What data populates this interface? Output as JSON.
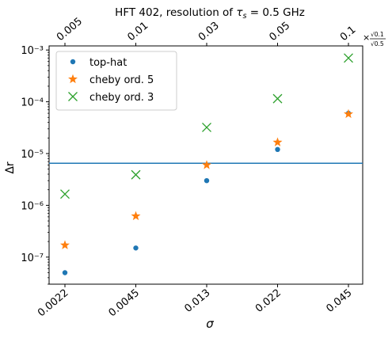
{
  "chart_data": {
    "type": "scatter",
    "title": "HFT 402, resolution of τ_s = 0.5 GHz",
    "title_parts": {
      "prefix": "HFT 402, resolution of ",
      "tau": "τ",
      "sub": "s",
      "suffix": " = 0.5 GHz"
    },
    "xlabel": "σ",
    "ylabel": "Δr",
    "y_scale": "log",
    "ylim": [
      3e-08,
      0.0012
    ],
    "categories": [
      "0.0022",
      "0.0045",
      "0.013",
      "0.022",
      "0.045"
    ],
    "top_categories": [
      "0.005",
      "0.01",
      "0.03",
      "0.05",
      "0.1"
    ],
    "top_axis_multiplier": {
      "prefix": "×",
      "numerator": "√0.1",
      "denominator": "√0.5"
    },
    "y_ticks": [
      {
        "value": 1e-07,
        "label": "10⁻⁷"
      },
      {
        "value": 1e-06,
        "label": "10⁻⁶"
      },
      {
        "value": 1e-05,
        "label": "10⁻⁵"
      },
      {
        "value": 0.0001,
        "label": "10⁻⁴"
      },
      {
        "value": 0.001,
        "label": "10⁻³"
      }
    ],
    "hline": {
      "value": 6.5e-06,
      "color": "#1f77b4"
    },
    "series": [
      {
        "name": "top-hat",
        "marker": "circle",
        "color": "#1f77b4",
        "values": [
          5e-08,
          1.5e-07,
          3e-06,
          1.2e-05,
          6e-05
        ]
      },
      {
        "name": "cheby ord. 5",
        "marker": "star",
        "color": "#ff7f0e",
        "values": [
          1.7e-07,
          6.2e-07,
          6e-06,
          1.65e-05,
          5.8e-05
        ]
      },
      {
        "name": "cheby ord. 3",
        "marker": "x",
        "color": "#2ca02c",
        "values": [
          1.65e-06,
          3.9e-06,
          3.2e-05,
          0.000115,
          0.0007
        ]
      }
    ],
    "legend_position": "top-left",
    "grid": false
  }
}
